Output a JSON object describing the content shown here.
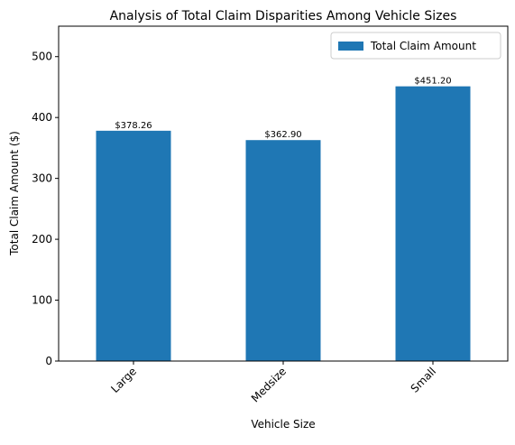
{
  "chart_data": {
    "type": "bar",
    "title": "Analysis of Total Claim Disparities Among Vehicle Sizes",
    "xlabel": "Vehicle Size",
    "ylabel": "Total Claim Amount ($)",
    "categories": [
      "Large",
      "Medsize",
      "Small"
    ],
    "series": [
      {
        "name": "Total Claim Amount",
        "values": [
          378.26,
          362.9,
          451.2
        ],
        "data_labels": [
          "$378.26",
          "$362.90",
          "$451.20"
        ],
        "color": "#1f77b4"
      }
    ],
    "ylim": [
      0,
      550
    ],
    "yticks": [
      "0",
      "100",
      "200",
      "300",
      "400",
      "500"
    ],
    "grid": false,
    "legend_position": "top-right",
    "xtick_rotation": 45
  }
}
